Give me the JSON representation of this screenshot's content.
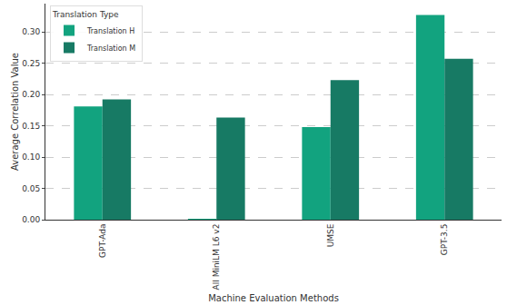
{
  "chart_data": {
    "type": "bar",
    "x_label": "Machine Evaluation Methods",
    "y_label": "Average Correlation Value",
    "legend_title": "Translation Type",
    "categories": [
      "GPT-Ada",
      "All MiniLM L6 v2",
      "UMSE",
      "GPT-3.5"
    ],
    "series": [
      {
        "name": "Translation H",
        "color": "#12a37f",
        "values": [
          0.181,
          0.001,
          0.148,
          0.327
        ]
      },
      {
        "name": "Translation M",
        "color": "#177a64",
        "values": [
          0.192,
          0.163,
          0.223,
          0.257
        ]
      }
    ],
    "ylim": [
      0,
      0.345
    ],
    "yticks": [
      {
        "value": 0,
        "label": "0.00"
      },
      {
        "value": 0.05,
        "label": "0.05"
      },
      {
        "value": 0.1,
        "label": "0.10"
      },
      {
        "value": 0.15,
        "label": "0.15"
      },
      {
        "value": 0.2,
        "label": "0.20"
      },
      {
        "value": 0.25,
        "label": "0.25"
      },
      {
        "value": 0.3,
        "label": "0.30"
      }
    ],
    "grid": true,
    "legend": "top-left"
  }
}
